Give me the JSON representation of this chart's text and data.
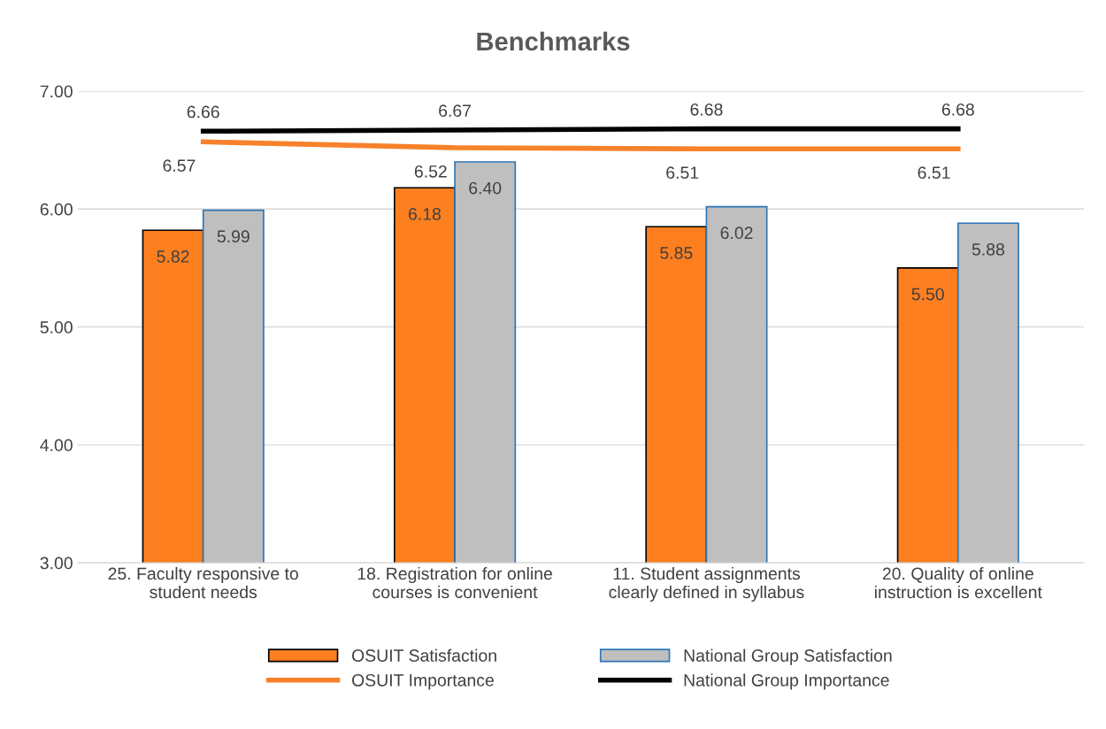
{
  "chart_data": {
    "type": "bar",
    "title": "Benchmarks",
    "categories": [
      "25. Faculty responsive to\nstudent needs",
      "18. Registration for online\ncourses is convenient",
      "11. Student assignments\nclearly defined in syllabus",
      "20. Quality of online\ninstruction is excellent"
    ],
    "series": [
      {
        "name": "OSUIT Satisfaction",
        "color": "#fd7f20",
        "values": [
          5.82,
          6.18,
          5.85,
          5.5
        ],
        "value_labels": [
          "5.82",
          "6.18",
          "5.85",
          "5.50"
        ]
      },
      {
        "name": "National Group Satisfaction",
        "color": "#bfbfbf",
        "values": [
          5.99,
          6.4,
          6.02,
          5.88
        ],
        "value_labels": [
          "5.99",
          "6.40",
          "6.02",
          "5.88"
        ]
      },
      {
        "name": "OSUIT Importance",
        "type": "line",
        "color": "#f7822a",
        "values": [
          6.57,
          6.52,
          6.51,
          6.51
        ],
        "value_labels": [
          "6.57",
          "6.52",
          "6.51",
          "6.51"
        ]
      },
      {
        "name": "National Group Importance",
        "type": "line",
        "color": "#000000",
        "values": [
          6.66,
          6.67,
          6.68,
          6.68
        ],
        "value_labels": [
          "6.66",
          "6.67",
          "6.68",
          "6.68"
        ]
      }
    ],
    "ylim": [
      3,
      7
    ],
    "yticks": [
      {
        "value": 3,
        "label": "3.00"
      },
      {
        "value": 4,
        "label": "4.00"
      },
      {
        "value": 5,
        "label": "5.00"
      },
      {
        "value": 6,
        "label": "6.00"
      },
      {
        "value": 7,
        "label": "7.00"
      }
    ],
    "grid": "y",
    "legend": "bottom",
    "marker": "none",
    "line_style": "solid"
  }
}
